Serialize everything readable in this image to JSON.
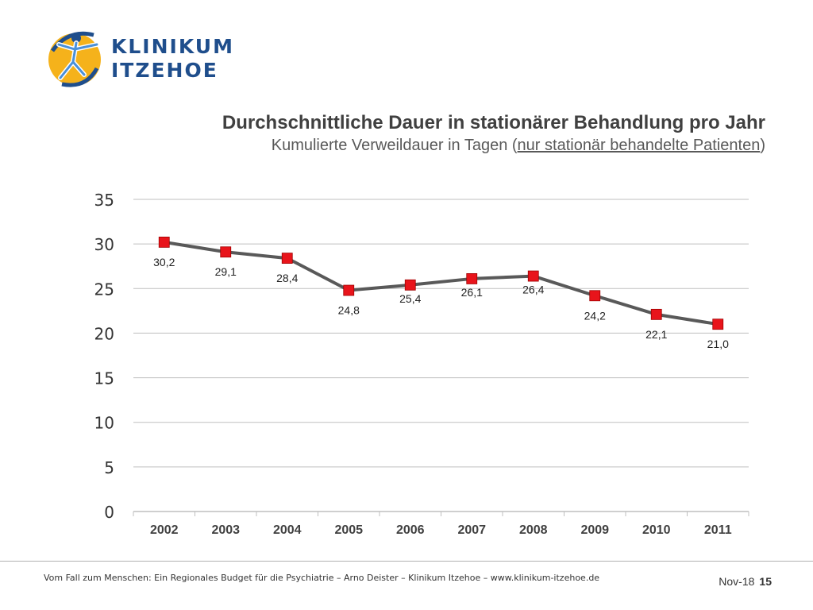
{
  "logo": {
    "line1": "KLINIKUM",
    "line2": "ITZEHOE"
  },
  "header": {
    "title": "Durchschnittliche Dauer in stationärer Behandlung pro Jahr",
    "subtitle_prefix": "Kumulierte Verweildauer in Tagen (",
    "subtitle_underlined": "nur stationär behandelte Patienten",
    "subtitle_suffix": ")"
  },
  "chart_data": {
    "type": "line",
    "categories": [
      "2002",
      "2003",
      "2004",
      "2005",
      "2006",
      "2007",
      "2008",
      "2009",
      "2010",
      "2011"
    ],
    "values": [
      30.2,
      29.1,
      28.4,
      24.8,
      25.4,
      26.1,
      26.4,
      24.2,
      22.1,
      21.0
    ],
    "data_labels": [
      "30,2",
      "29,1",
      "28,4",
      "24,8",
      "25,4",
      "26,1",
      "26,4",
      "24,2",
      "22,1",
      "21,0"
    ],
    "yticks": [
      "0",
      "5",
      "10",
      "15",
      "20",
      "25",
      "30",
      "35"
    ],
    "ylim": [
      0,
      35
    ],
    "title": "Durchschnittliche Dauer in stationärer Behandlung pro Jahr",
    "xlabel": "",
    "ylabel": "",
    "grid": true,
    "colors": {
      "line": "#595959",
      "marker": "#e8141b",
      "grid": "#bfbfbf"
    }
  },
  "footer": {
    "text": "Vom Fall zum Menschen: Ein Regionales Budget für die Psychiatrie  – Arno Deister – Klinikum Itzehoe – www.klinikum-itzehoe.de",
    "date": "Nov-18",
    "page": "15"
  }
}
